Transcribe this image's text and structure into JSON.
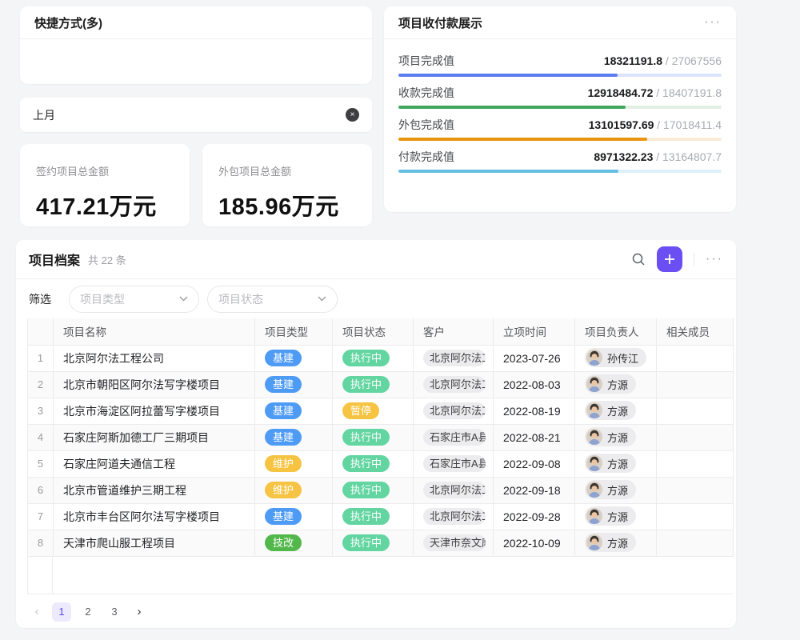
{
  "shortcut_card": {
    "title": "快捷方式(多)"
  },
  "month_filter": {
    "label": "上月",
    "clear_icon": "×"
  },
  "stat_cards": [
    {
      "label": "签约项目总金额",
      "value": "417.21万元"
    },
    {
      "label": "外包项目总金额",
      "value": "185.96万元"
    }
  ],
  "payment_card": {
    "title": "项目收付款展示",
    "more_label": "···",
    "items": [
      {
        "label": "项目完成值",
        "value": "18321191.8",
        "total": "27067556",
        "percent": 67.7,
        "fill": "#5b7bf0",
        "track": "#dbe4fb"
      },
      {
        "label": "收款完成值",
        "value": "12918484.72",
        "total": "18407191.8",
        "percent": 70.2,
        "fill": "#3fa65c",
        "track": "#e3efe2"
      },
      {
        "label": "外包完成值",
        "value": "13101597.69",
        "total": "17018411.4",
        "percent": 77.0,
        "fill": "#e9930e",
        "track": "#faecd8"
      },
      {
        "label": "付款完成值",
        "value": "8971322.23",
        "total": "13164807.7",
        "percent": 68.1,
        "fill": "#66bfe3",
        "track": "#def0f9"
      }
    ]
  },
  "archive": {
    "title": "项目档案",
    "count_text": "共 22 条",
    "filter_label": "筛选",
    "filters": [
      {
        "placeholder": "项目类型"
      },
      {
        "placeholder": "项目状态"
      }
    ],
    "columns": [
      "项目名称",
      "项目类型",
      "项目状态",
      "客户",
      "立项时间",
      "项目负责人",
      "相关成员"
    ],
    "type_colors": {
      "基建": "#4e9bf5",
      "维护": "#f6c442",
      "技改": "#53b84b"
    },
    "status_colors": {
      "执行中": "#63d5a1",
      "暂停": "#f6c442"
    },
    "rows": [
      {
        "num": "1",
        "name": "北京阿尔法工程公司",
        "type": "基建",
        "status": "执行中",
        "customer": "北京阿尔法工",
        "date": "2023-07-26",
        "owner": "孙传江",
        "members": ""
      },
      {
        "num": "2",
        "name": "北京市朝阳区阿尔法写字楼项目",
        "type": "基建",
        "status": "执行中",
        "customer": "北京阿尔法工",
        "date": "2022-08-03",
        "owner": "方源",
        "members": ""
      },
      {
        "num": "3",
        "name": "北京市海淀区阿拉蕾写字楼项目",
        "type": "基建",
        "status": "暂停",
        "customer": "北京阿尔法工",
        "date": "2022-08-19",
        "owner": "方源",
        "members": ""
      },
      {
        "num": "4",
        "name": "石家庄阿斯加德工厂三期项目",
        "type": "基建",
        "status": "执行中",
        "customer": "石家庄市A县",
        "date": "2022-08-21",
        "owner": "方源",
        "members": ""
      },
      {
        "num": "5",
        "name": "石家庄阿道夫通信工程",
        "type": "维护",
        "status": "执行中",
        "customer": "石家庄市A县",
        "date": "2022-09-08",
        "owner": "方源",
        "members": ""
      },
      {
        "num": "6",
        "name": "北京市管道维护三期工程",
        "type": "维护",
        "status": "执行中",
        "customer": "北京阿尔法工",
        "date": "2022-09-18",
        "owner": "方源",
        "members": ""
      },
      {
        "num": "7",
        "name": "北京市丰台区阿尔法写字楼项目",
        "type": "基建",
        "status": "执行中",
        "customer": "北京阿尔法工",
        "date": "2022-09-28",
        "owner": "方源",
        "members": ""
      },
      {
        "num": "8",
        "name": "天津市爬山服工程项目",
        "type": "技改",
        "status": "执行中",
        "customer": "天津市奈文摩",
        "date": "2022-10-09",
        "owner": "方源",
        "members": ""
      }
    ],
    "pagination": {
      "prev": "‹",
      "pages": [
        "1",
        "2",
        "3"
      ],
      "active": "1",
      "next": "›"
    }
  }
}
